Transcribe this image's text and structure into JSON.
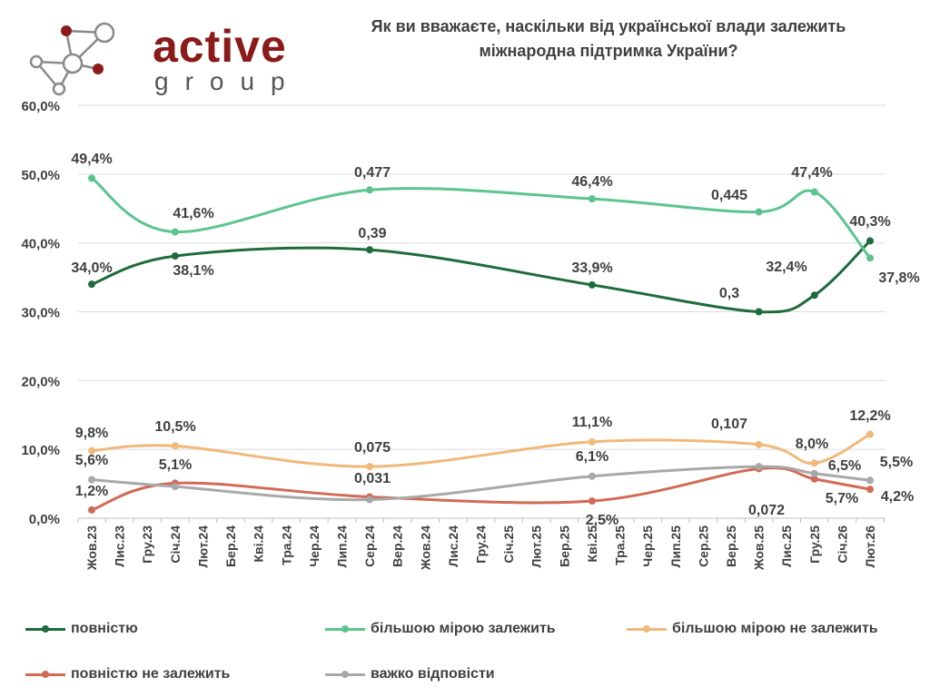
{
  "logo": {
    "word": "active",
    "sub": "group",
    "colors": {
      "accent": "#8b1a1a",
      "node": "#9e9e9e"
    }
  },
  "title_lines": [
    "Як ви вважаєте, наскільки від української влади залежить",
    "міжнародна підтримка України?"
  ],
  "chart_data": {
    "type": "line",
    "title": "Як ви вважаєте, наскільки від української влади залежить міжнародна підтримка України?",
    "categories": [
      "Жов.23",
      "Лис.23",
      "Гру.23",
      "Січ.24",
      "Лют.24",
      "Бер.24",
      "Кві.24",
      "Тра.24",
      "Чер.24",
      "Лип.24",
      "Сер.24",
      "Вер.24",
      "Жов.24",
      "Лис.24",
      "Гру.24",
      "Січ.25",
      "Лют.25",
      "Бер.25",
      "Кві.25",
      "Тра.25",
      "Чер.25",
      "Лип.25",
      "Сер.25",
      "Вер.25",
      "Жов.25",
      "Лис.25",
      "Гру.25",
      "Січ.26",
      "Лют.26"
    ],
    "yticks": [
      "0,0%",
      "10,0%",
      "20,0%",
      "30,0%",
      "40,0%",
      "50,0%",
      "60,0%"
    ],
    "ylim": [
      0,
      60
    ],
    "grid": true,
    "legend_position": "bottom",
    "series": [
      {
        "name": "повністю",
        "color": "#1e6b3c",
        "points": [
          {
            "x": 0,
            "y": 34.0,
            "label": "34,0%"
          },
          {
            "x": 3,
            "y": 38.1,
            "label": "38,1%"
          },
          {
            "x": 10,
            "y": 39.0,
            "label": "0,39"
          },
          {
            "x": 18,
            "y": 33.9,
            "label": "33,9%"
          },
          {
            "x": 24,
            "y": 30.0,
            "label": "0,3"
          },
          {
            "x": 26,
            "y": 32.4,
            "label": "32,4%"
          },
          {
            "x": 28,
            "y": 40.3,
            "label": "40,3%"
          }
        ]
      },
      {
        "name": "більшою мірою залежить",
        "color": "#5cc48f",
        "points": [
          {
            "x": 0,
            "y": 49.4,
            "label": "49,4%"
          },
          {
            "x": 3,
            "y": 41.6,
            "label": "41,6%"
          },
          {
            "x": 10,
            "y": 47.7,
            "label": "0,477"
          },
          {
            "x": 18,
            "y": 46.4,
            "label": "46,4%"
          },
          {
            "x": 24,
            "y": 44.5,
            "label": "0,445"
          },
          {
            "x": 26,
            "y": 47.4,
            "label": "47,4%"
          },
          {
            "x": 28,
            "y": 37.8,
            "label": "37,8%"
          }
        ]
      },
      {
        "name": "більшою мірою не залежить",
        "color": "#f0b97a",
        "points": [
          {
            "x": 0,
            "y": 9.8,
            "label": "9,8%"
          },
          {
            "x": 3,
            "y": 10.5,
            "label": "10,5%"
          },
          {
            "x": 10,
            "y": 7.5,
            "label": "0,075"
          },
          {
            "x": 18,
            "y": 11.1,
            "label": "11,1%"
          },
          {
            "x": 24,
            "y": 10.7,
            "label": "0,107"
          },
          {
            "x": 26,
            "y": 8.0,
            "label": "8,0%"
          },
          {
            "x": 28,
            "y": 12.2,
            "label": "12,2%"
          }
        ]
      },
      {
        "name": "повністю не залежить",
        "color": "#d26a55",
        "points": [
          {
            "x": 0,
            "y": 1.2,
            "label": "1,2%"
          },
          {
            "x": 3,
            "y": 5.1,
            "label": "5,1%"
          },
          {
            "x": 10,
            "y": 3.1,
            "label": "0,031"
          },
          {
            "x": 18,
            "y": 2.5,
            "label": "2,5%"
          },
          {
            "x": 24,
            "y": 7.2,
            "label": "0,072"
          },
          {
            "x": 26,
            "y": 5.7,
            "label": "5,7%"
          },
          {
            "x": 28,
            "y": 4.2,
            "label": "4,2%"
          }
        ]
      },
      {
        "name": "важко відповісти",
        "color": "#a8a8a8",
        "points": [
          {
            "x": 0,
            "y": 5.6,
            "label": "5,6%"
          },
          {
            "x": 3,
            "y": 4.6,
            "label": ""
          },
          {
            "x": 10,
            "y": 2.7,
            "label": ""
          },
          {
            "x": 18,
            "y": 6.1,
            "label": "6,1%"
          },
          {
            "x": 24,
            "y": 7.5,
            "label": ""
          },
          {
            "x": 26,
            "y": 6.5,
            "label": "6,5%"
          },
          {
            "x": 28,
            "y": 5.5,
            "label": "5,5%"
          }
        ]
      }
    ]
  }
}
